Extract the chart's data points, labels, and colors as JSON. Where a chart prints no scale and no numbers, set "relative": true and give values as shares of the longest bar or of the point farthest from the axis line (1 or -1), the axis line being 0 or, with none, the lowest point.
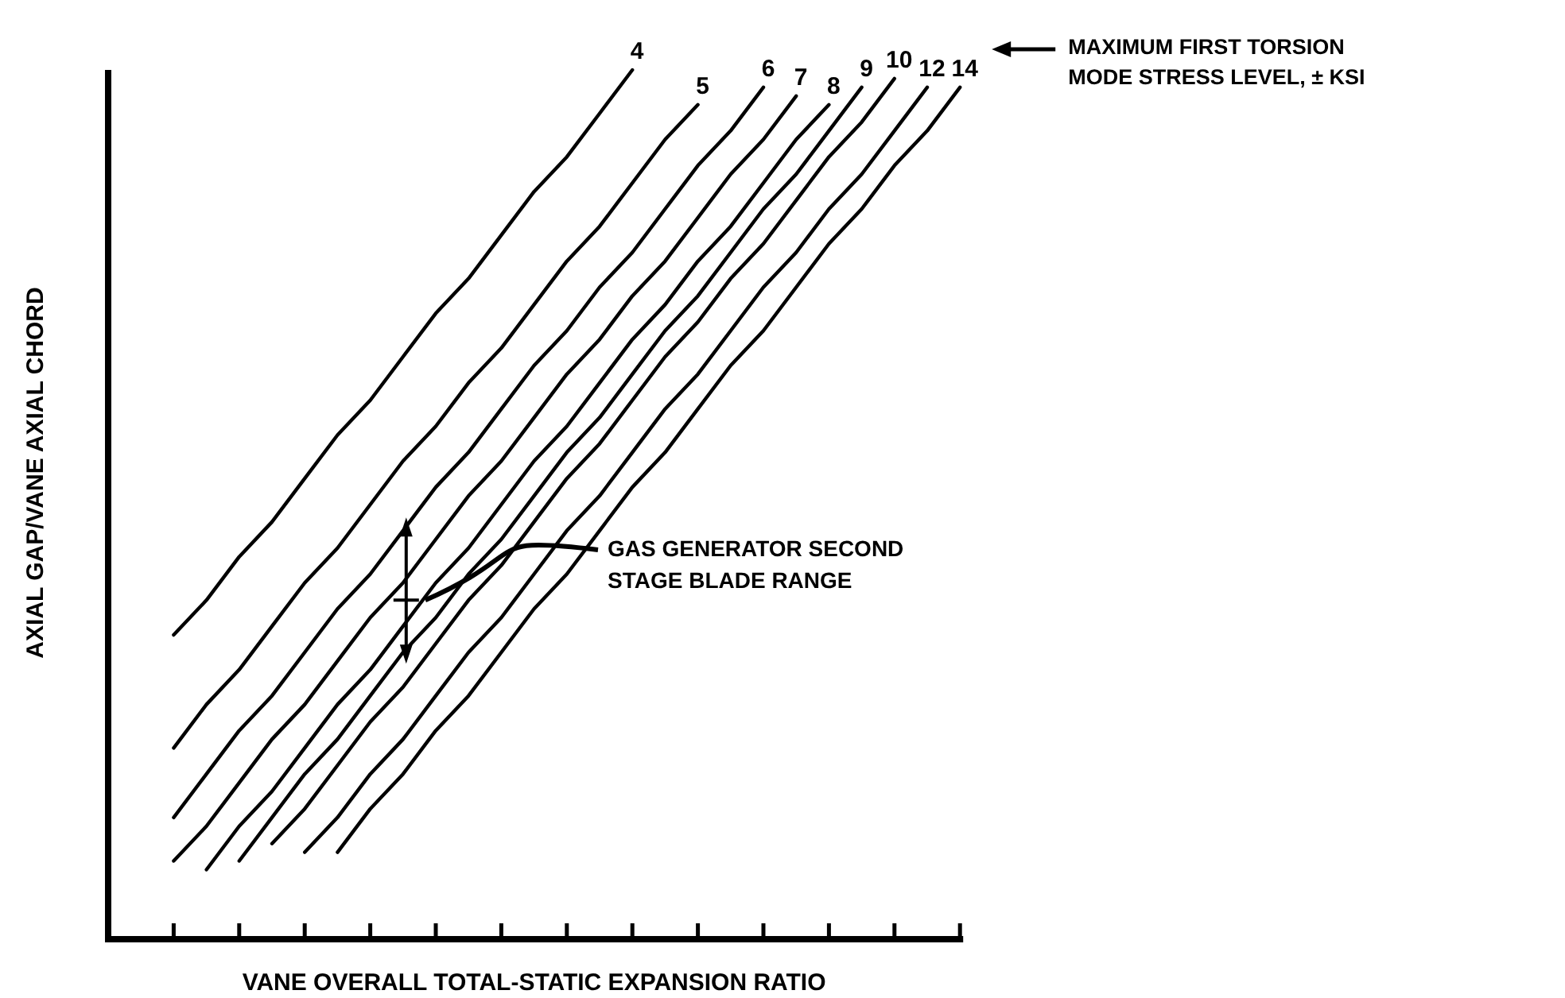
{
  "chart_data": {
    "type": "line",
    "relative": true,
    "xlabel": "VANE OVERALL TOTAL-STATIC EXPANSION RATIO",
    "ylabel": "AXIAL GAP/VANE AXIAL CHORD",
    "legend_title": "MAXIMUM FIRST TORSION MODE STRESS LEVEL, ± KSI",
    "legend": "top right",
    "marker": "none",
    "line_style": "solid",
    "grid": false,
    "categories": [
      null,
      null,
      null,
      null,
      null,
      null,
      null,
      null,
      null,
      null,
      null,
      null,
      null,
      null,
      null,
      null,
      null,
      null,
      null,
      null,
      null,
      null,
      null,
      null,
      null,
      null,
      null
    ],
    "series": [
      {
        "name": "4",
        "color": "#000000",
        "values": [
          null,
          null,
          0.35,
          0.39,
          0.44,
          0.48,
          0.53,
          0.58,
          0.62,
          0.67,
          0.72,
          0.76,
          0.81,
          0.86,
          0.9,
          0.95,
          1,
          null,
          null,
          null,
          null,
          null,
          null,
          null,
          null,
          null,
          null
        ]
      },
      {
        "name": "5",
        "color": "#000000",
        "values": [
          null,
          null,
          0.22,
          0.27,
          0.31,
          0.36,
          0.41,
          0.45,
          0.5,
          0.55,
          0.59,
          0.64,
          0.68,
          0.73,
          0.78,
          0.82,
          0.87,
          0.92,
          0.96,
          null,
          null,
          null,
          null,
          null,
          null,
          null,
          null
        ]
      },
      {
        "name": "6",
        "color": "#000000",
        "values": [
          null,
          null,
          0.14,
          0.19,
          0.24,
          0.28,
          0.33,
          0.38,
          0.42,
          0.47,
          0.52,
          0.56,
          0.61,
          0.66,
          0.7,
          0.75,
          0.79,
          0.84,
          0.89,
          0.93,
          0.98,
          null,
          null,
          null,
          null,
          null,
          null
        ]
      },
      {
        "name": "7",
        "color": "#000000",
        "values": [
          null,
          null,
          0.09,
          0.13,
          0.18,
          0.23,
          0.27,
          0.32,
          0.37,
          0.41,
          0.46,
          0.51,
          0.55,
          0.6,
          0.65,
          0.69,
          0.74,
          0.78,
          0.83,
          0.88,
          0.92,
          0.97,
          null,
          null,
          null,
          null,
          null
        ]
      },
      {
        "name": "8",
        "color": "#000000",
        "values": [
          null,
          null,
          null,
          0.08,
          0.13,
          0.17,
          0.22,
          0.27,
          0.31,
          0.36,
          0.41,
          0.45,
          0.5,
          0.55,
          0.59,
          0.64,
          0.69,
          0.73,
          0.78,
          0.82,
          0.87,
          0.92,
          0.96,
          null,
          null,
          null,
          null
        ]
      },
      {
        "name": "9",
        "color": "#000000",
        "values": [
          null,
          null,
          null,
          null,
          0.09,
          0.14,
          0.19,
          0.23,
          0.28,
          0.33,
          0.37,
          0.42,
          0.46,
          0.51,
          0.56,
          0.6,
          0.65,
          0.7,
          0.74,
          0.79,
          0.84,
          0.88,
          0.93,
          0.98,
          null,
          null,
          null
        ]
      },
      {
        "name": "10",
        "color": "#000000",
        "values": [
          null,
          null,
          null,
          null,
          null,
          0.11,
          0.15,
          0.2,
          0.25,
          0.29,
          0.34,
          0.39,
          0.43,
          0.48,
          0.53,
          0.57,
          0.62,
          0.67,
          0.71,
          0.76,
          0.8,
          0.85,
          0.9,
          0.94,
          0.99,
          null,
          null
        ]
      },
      {
        "name": "12",
        "color": "#000000",
        "values": [
          null,
          null,
          null,
          null,
          null,
          null,
          0.1,
          0.14,
          0.19,
          0.23,
          0.28,
          0.33,
          0.37,
          0.42,
          0.47,
          0.51,
          0.56,
          0.61,
          0.65,
          0.7,
          0.75,
          0.79,
          0.84,
          0.88,
          0.93,
          0.98,
          null
        ]
      },
      {
        "name": "14",
        "color": "#000000",
        "values": [
          null,
          null,
          null,
          null,
          null,
          null,
          null,
          0.1,
          0.15,
          0.19,
          0.24,
          0.28,
          0.33,
          0.38,
          0.42,
          0.47,
          0.52,
          0.56,
          0.61,
          0.66,
          0.7,
          0.75,
          0.8,
          0.84,
          0.89,
          0.93,
          0.98
        ]
      }
    ],
    "annotations": [
      "GAS GENERATOR SECOND STAGE BLADE RANGE"
    ]
  }
}
